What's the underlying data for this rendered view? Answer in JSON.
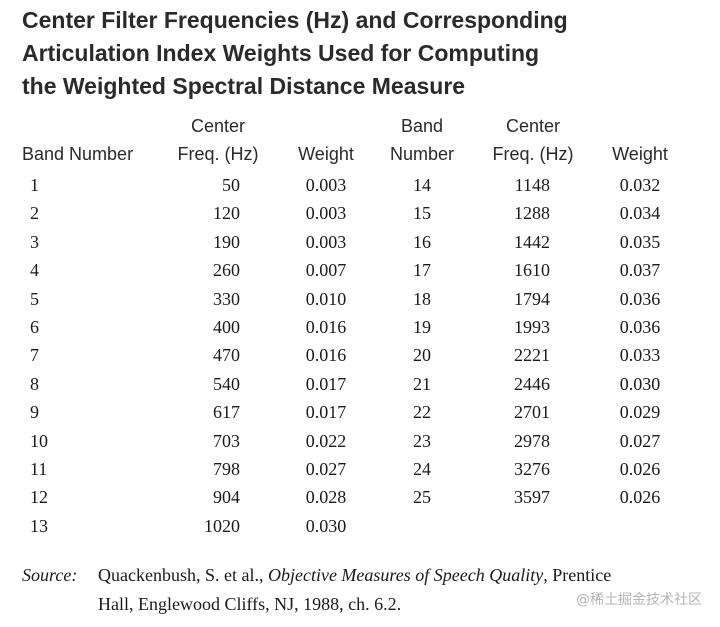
{
  "title": {
    "line1": "Center Filter Frequencies (Hz) and Corresponding",
    "line2": "Articulation Index Weights Used for Computing",
    "line3": "the Weighted Spectral Distance Measure"
  },
  "headers": {
    "band_number": "Band Number",
    "center_top": "Center",
    "freq_hz": "Freq. (Hz)",
    "weight": "Weight",
    "band_top": "Band",
    "number": "Number"
  },
  "left_rows": [
    {
      "band": "1",
      "freq": "50",
      "weight": "0.003"
    },
    {
      "band": "2",
      "freq": "120",
      "weight": "0.003"
    },
    {
      "band": "3",
      "freq": "190",
      "weight": "0.003"
    },
    {
      "band": "4",
      "freq": "260",
      "weight": "0.007"
    },
    {
      "band": "5",
      "freq": "330",
      "weight": "0.010"
    },
    {
      "band": "6",
      "freq": "400",
      "weight": "0.016"
    },
    {
      "band": "7",
      "freq": "470",
      "weight": "0.016"
    },
    {
      "band": "8",
      "freq": "540",
      "weight": "0.017"
    },
    {
      "band": "9",
      "freq": "617",
      "weight": "0.017"
    },
    {
      "band": "10",
      "freq": "703",
      "weight": "0.022"
    },
    {
      "band": "11",
      "freq": "798",
      "weight": "0.027"
    },
    {
      "band": "12",
      "freq": "904",
      "weight": "0.028"
    },
    {
      "band": "13",
      "freq": "1020",
      "weight": "0.030"
    }
  ],
  "right_rows": [
    {
      "band": "14",
      "freq": "1148",
      "weight": "0.032"
    },
    {
      "band": "15",
      "freq": "1288",
      "weight": "0.034"
    },
    {
      "band": "16",
      "freq": "1442",
      "weight": "0.035"
    },
    {
      "band": "17",
      "freq": "1610",
      "weight": "0.037"
    },
    {
      "band": "18",
      "freq": "1794",
      "weight": "0.036"
    },
    {
      "band": "19",
      "freq": "1993",
      "weight": "0.036"
    },
    {
      "band": "20",
      "freq": "2221",
      "weight": "0.033"
    },
    {
      "band": "21",
      "freq": "2446",
      "weight": "0.030"
    },
    {
      "band": "22",
      "freq": "2701",
      "weight": "0.029"
    },
    {
      "band": "23",
      "freq": "2978",
      "weight": "0.027"
    },
    {
      "band": "24",
      "freq": "3276",
      "weight": "0.026"
    },
    {
      "band": "25",
      "freq": "3597",
      "weight": "0.026"
    }
  ],
  "source": {
    "label": "Source:",
    "authors": "Quackenbush, S. et al., ",
    "book": "Objective Measures of Speech Quality",
    "after_book": ", Prentice",
    "line2": "Hall, Englewood Cliffs, NJ, 1988, ch. 6.2."
  },
  "watermark": "@稀土掘金技术社区"
}
